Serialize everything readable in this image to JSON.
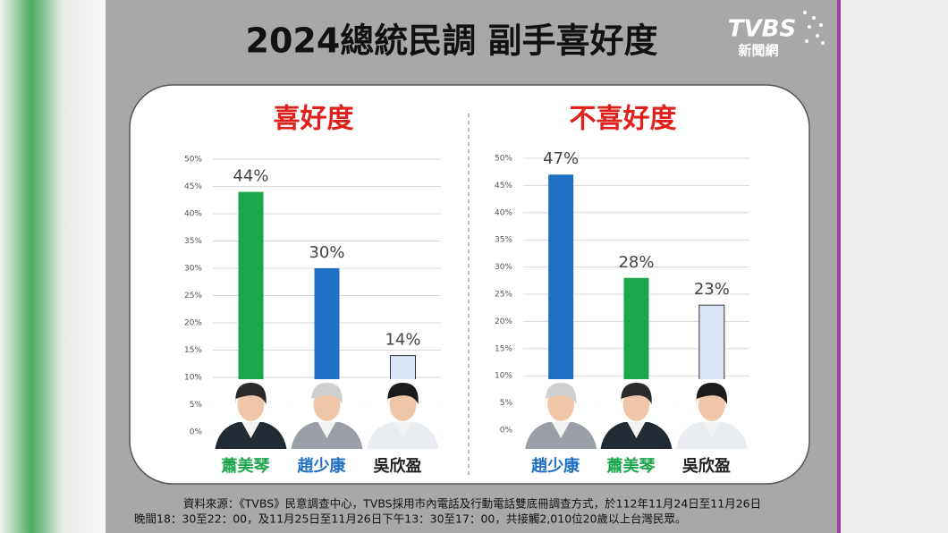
{
  "title": "2024總統民調 副手喜好度",
  "logo": {
    "brand": "TVBS",
    "sub": "新聞網"
  },
  "chart_data": [
    {
      "type": "bar",
      "title": "喜好度",
      "categories": [
        "蕭美琴",
        "趙少康",
        "吳欣盈"
      ],
      "values": [
        44,
        30,
        14
      ],
      "value_labels": [
        "44%",
        "30%",
        "14%"
      ],
      "colors": [
        "#1ba64b",
        "#1f6fc4",
        "#dbe5f6"
      ],
      "label_colors": [
        "#1ba64b",
        "#1f6fc4",
        "#222222"
      ],
      "ylim": [
        0,
        50
      ],
      "yticks": [
        {
          "value": 0,
          "label": "0%"
        },
        {
          "value": 5,
          "label": "5%"
        },
        {
          "value": 10,
          "label": "10%"
        },
        {
          "value": 15,
          "label": "15%"
        },
        {
          "value": 20,
          "label": "20%"
        },
        {
          "value": 25,
          "label": "25%"
        },
        {
          "value": 30,
          "label": "30%"
        },
        {
          "value": 35,
          "label": "35%"
        },
        {
          "value": 40,
          "label": "40%"
        },
        {
          "value": 45,
          "label": "45%"
        },
        {
          "value": 50,
          "label": "50%"
        }
      ],
      "grid": true
    },
    {
      "type": "bar",
      "title": "不喜好度",
      "categories": [
        "趙少康",
        "蕭美琴",
        "吳欣盈"
      ],
      "values": [
        47,
        28,
        23
      ],
      "value_labels": [
        "47%",
        "28%",
        "23%"
      ],
      "colors": [
        "#1f6fc4",
        "#1ba64b",
        "#dbe5f6"
      ],
      "label_colors": [
        "#1f6fc4",
        "#1ba64b",
        "#222222"
      ],
      "ylim": [
        0,
        50
      ],
      "yticks": [
        {
          "value": 0,
          "label": "0%"
        },
        {
          "value": 5,
          "label": "5%"
        },
        {
          "value": 10,
          "label": "10%"
        },
        {
          "value": 15,
          "label": "15%"
        },
        {
          "value": 20,
          "label": "20%"
        },
        {
          "value": 25,
          "label": "25%"
        },
        {
          "value": 30,
          "label": "30%"
        },
        {
          "value": 35,
          "label": "35%"
        },
        {
          "value": 40,
          "label": "40%"
        },
        {
          "value": 45,
          "label": "45%"
        },
        {
          "value": 50,
          "label": "50%"
        }
      ],
      "grid": true
    }
  ],
  "source": [
    "資料來源：《TVBS》民意調查中心，TVBS採用市內電話及行動電話雙底冊調查方式，於112年11月24日至11月26日",
    "晚間18：30至22：00，及11月25日至11月26日下午13：30至17：00，共接觸2,010位20歲以上台灣民眾。"
  ]
}
